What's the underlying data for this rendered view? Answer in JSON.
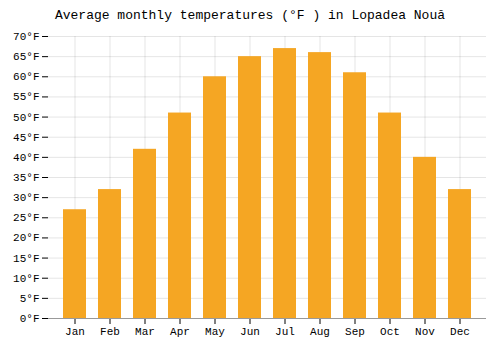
{
  "chart_data": {
    "type": "bar",
    "title": "Average monthly temperatures (°F ) in Lopadea Nouă",
    "categories": [
      "Jan",
      "Feb",
      "Mar",
      "Apr",
      "May",
      "Jun",
      "Jul",
      "Aug",
      "Sep",
      "Oct",
      "Nov",
      "Dec"
    ],
    "values": [
      27,
      32,
      42,
      51,
      60,
      65,
      67,
      66,
      61,
      51,
      40,
      32
    ],
    "color": "#F5A623",
    "ylim": [
      0,
      70
    ],
    "yticks": [
      {
        "value": 0,
        "label": "0°F"
      },
      {
        "value": 5,
        "label": "5°F"
      },
      {
        "value": 10,
        "label": "10°F"
      },
      {
        "value": 15,
        "label": "15°F"
      },
      {
        "value": 20,
        "label": "20°F"
      },
      {
        "value": 25,
        "label": "25°F"
      },
      {
        "value": 30,
        "label": "30°F"
      },
      {
        "value": 35,
        "label": "35°F"
      },
      {
        "value": 40,
        "label": "40°F"
      },
      {
        "value": 45,
        "label": "45°F"
      },
      {
        "value": 50,
        "label": "50°F"
      },
      {
        "value": 55,
        "label": "55°F"
      },
      {
        "value": 60,
        "label": "60°F"
      },
      {
        "value": 65,
        "label": "65°F"
      },
      {
        "value": 70,
        "label": "70°F"
      }
    ],
    "grid": true
  }
}
